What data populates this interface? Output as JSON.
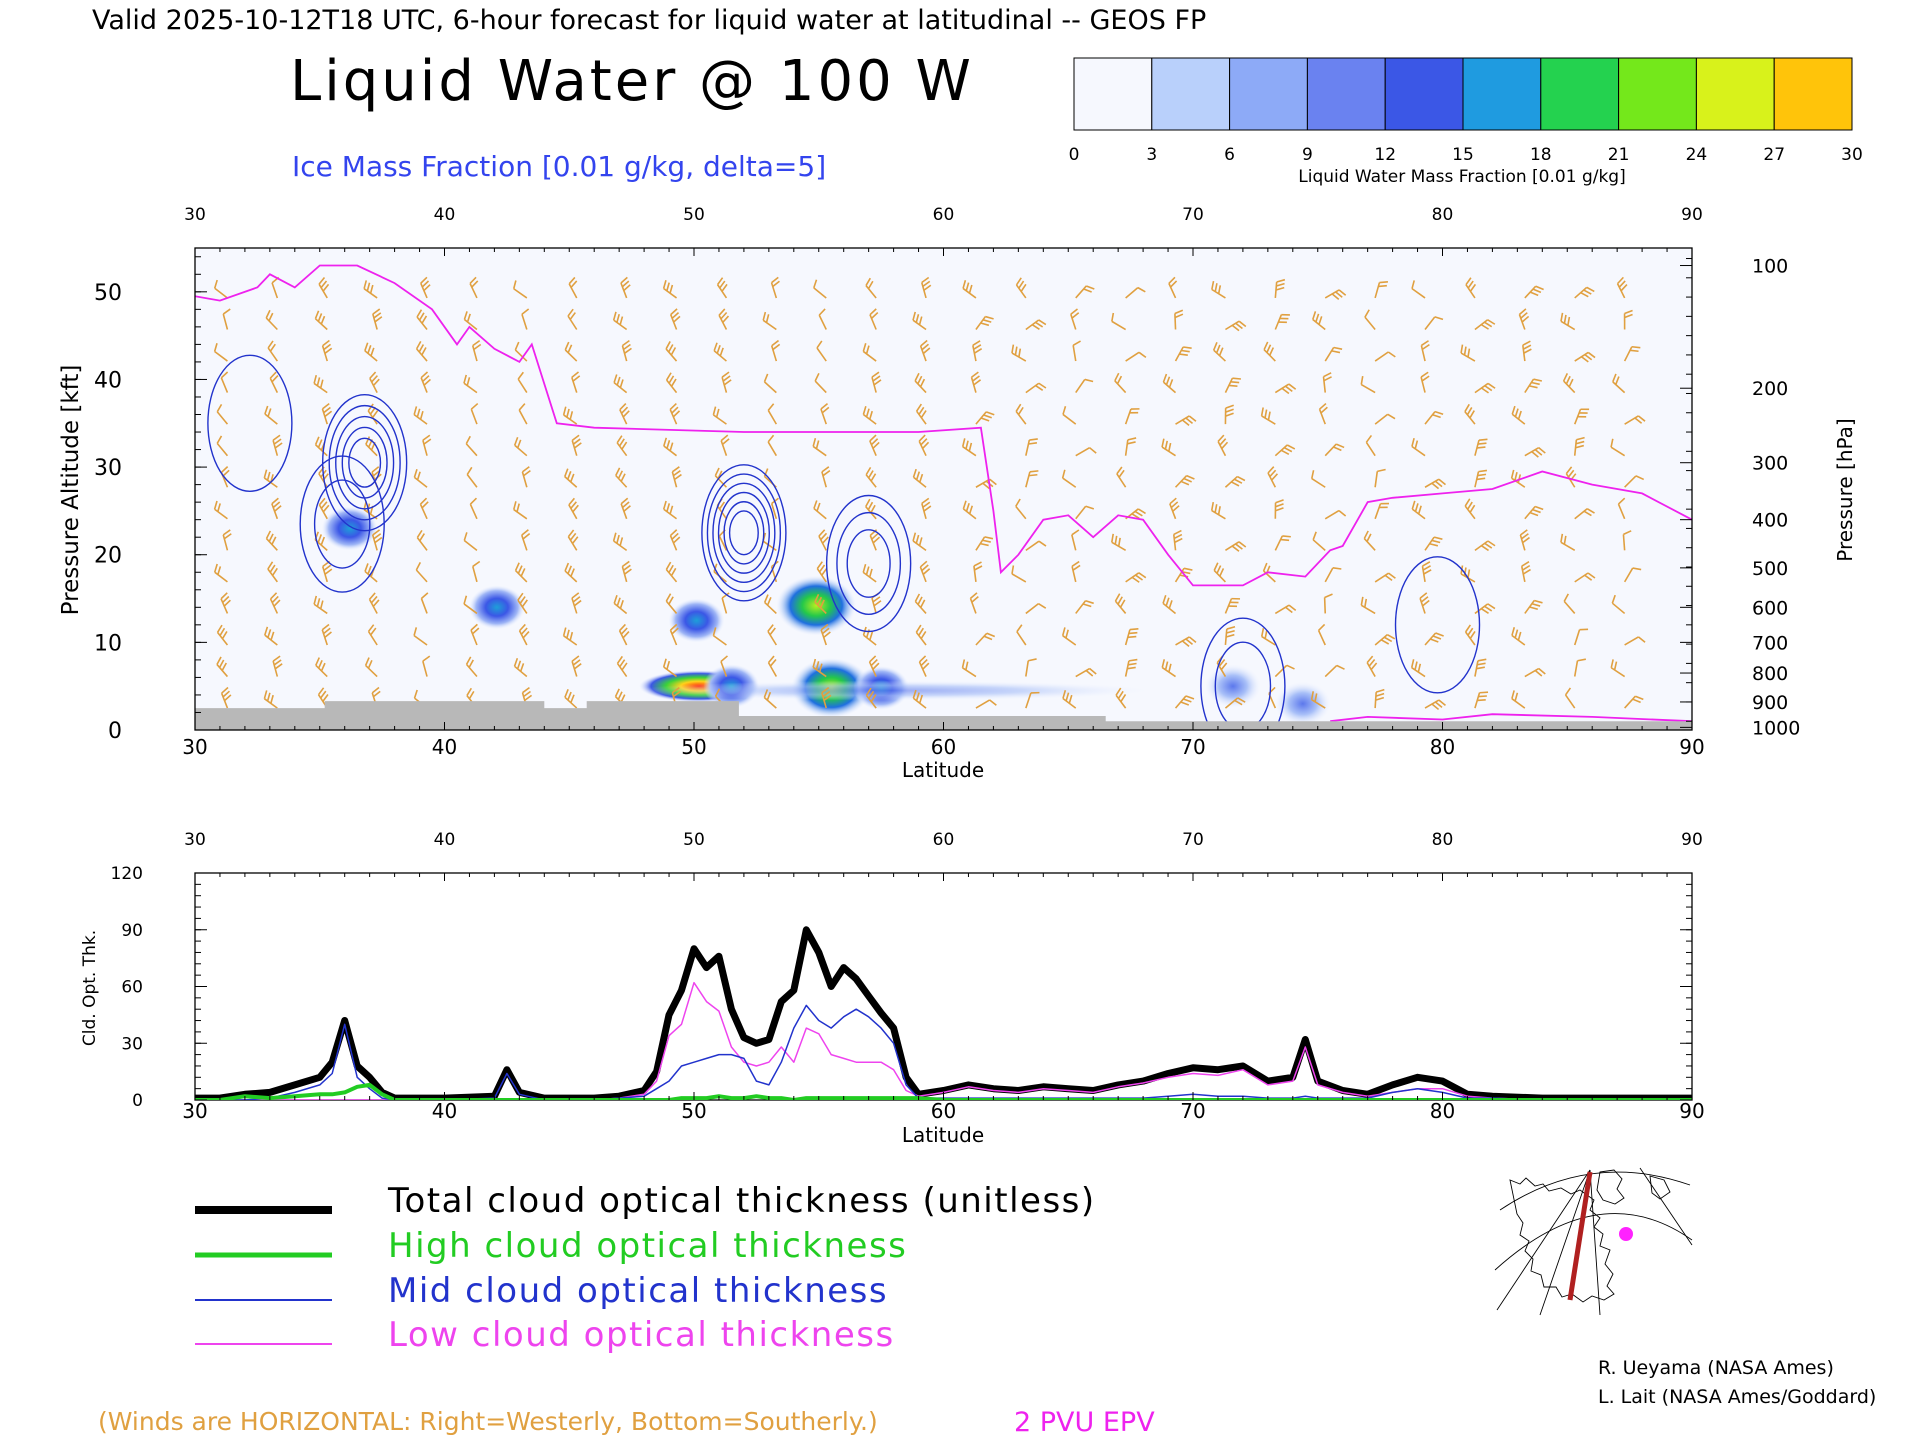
{
  "header": {
    "valid_line": "Valid 2025-10-12T18 UTC, 6-hour forecast for liquid water at latitudinal -- GEOS FP",
    "main_title": "Liquid Water @ 100 W",
    "ice_label": "Ice Mass Fraction [0.01 g/kg, delta=5]"
  },
  "colorbar": {
    "ticks": [
      "0",
      "3",
      "6",
      "9",
      "12",
      "15",
      "18",
      "21",
      "24",
      "27",
      "30"
    ],
    "label": "Liquid Water Mass Fraction [0.01 g/kg]",
    "colors": [
      "#f6f8fe",
      "#b9d0fb",
      "#8daaf7",
      "#6a82f0",
      "#3b57e6",
      "#1f9be0",
      "#24d24f",
      "#74e81b",
      "#d8f21b",
      "#ffc40a",
      "#ff9a07",
      "#ff3b0a"
    ]
  },
  "legend": {
    "items": [
      {
        "label": "Total cloud optical thickness (unitless)",
        "color": "#000000"
      },
      {
        "label": "High cloud optical thickness",
        "color": "#22cc22"
      },
      {
        "label": "Mid cloud optical thickness",
        "color": "#2233cc"
      },
      {
        "label": "Low cloud optical thickness",
        "color": "#ee44ee"
      }
    ]
  },
  "credits": {
    "line1": "R. Ueyama (NASA Ames)",
    "line2": "L. Lait (NASA Ames/Goddard)"
  },
  "footer": {
    "winds_note": "(Winds are HORIZONTAL: Right=Westerly, Bottom=Southerly.)",
    "pv_label": "2 PVU EPV",
    "winds_color": "#e0a040",
    "pv_color": "#ee22ee"
  },
  "chart_data": [
    {
      "type": "heatmap",
      "title": "Liquid Water @ 100 W",
      "xlabel": "Latitude",
      "ylabel": "Pressure Altitude [kft]",
      "y2label": "Pressure [hPa]",
      "xlim": [
        30,
        90
      ],
      "ylim": [
        0,
        55
      ],
      "xticks": [
        "30",
        "40",
        "50",
        "60",
        "70",
        "80",
        "90"
      ],
      "yticks": [
        "0",
        "10",
        "20",
        "30",
        "40",
        "50"
      ],
      "pressure_ticks": [
        {
          "label": "100",
          "kft": 53
        },
        {
          "label": "200",
          "kft": 39
        },
        {
          "label": "300",
          "kft": 30.5
        },
        {
          "label": "400",
          "kft": 24
        },
        {
          "label": "500",
          "kft": 18.5
        },
        {
          "label": "600",
          "kft": 14
        },
        {
          "label": "700",
          "kft": 10
        },
        {
          "label": "800",
          "kft": 6.5
        },
        {
          "label": "900",
          "kft": 3.2
        },
        {
          "label": "1000",
          "kft": 0.3
        }
      ],
      "liquid_water_blobs": [
        {
          "lat": 50.2,
          "kft": 5.0,
          "value": 30
        },
        {
          "lat": 51.5,
          "kft": 5.0,
          "value": 12
        },
        {
          "lat": 55.5,
          "kft": 4.8,
          "value": 14
        },
        {
          "lat": 57.5,
          "kft": 4.8,
          "value": 12
        },
        {
          "lat": 54.9,
          "kft": 14.2,
          "value": 21
        },
        {
          "lat": 50.1,
          "kft": 12.5,
          "value": 12
        },
        {
          "lat": 42.1,
          "kft": 14.0,
          "value": 10
        },
        {
          "lat": 36.2,
          "kft": 23.0,
          "value": 9
        },
        {
          "lat": 71.6,
          "kft": 5.0,
          "value": 8
        },
        {
          "lat": 74.4,
          "kft": 3.0,
          "value": 7
        }
      ],
      "ice_contours": [
        {
          "lat": 36.8,
          "kft": 30.5,
          "levels": 5
        },
        {
          "lat": 52.0,
          "kft": 22.5,
          "levels": 6
        },
        {
          "lat": 57.0,
          "kft": 19.0,
          "levels": 3
        },
        {
          "lat": 35.9,
          "kft": 23.5,
          "levels": 2
        },
        {
          "lat": 32.2,
          "kft": 35.0,
          "levels": 1
        },
        {
          "lat": 72.0,
          "kft": 5.0,
          "levels": 2
        },
        {
          "lat": 79.8,
          "kft": 12.0,
          "levels": 1
        }
      ],
      "epv_2pvu_kft": [
        {
          "lat": 30,
          "kft": 49.5
        },
        {
          "lat": 31,
          "kft": 49
        },
        {
          "lat": 32.5,
          "kft": 50.5
        },
        {
          "lat": 33,
          "kft": 52
        },
        {
          "lat": 34,
          "kft": 50.5
        },
        {
          "lat": 35,
          "kft": 53
        },
        {
          "lat": 36.5,
          "kft": 53
        },
        {
          "lat": 38,
          "kft": 51
        },
        {
          "lat": 39.5,
          "kft": 48
        },
        {
          "lat": 40.5,
          "kft": 44
        },
        {
          "lat": 41,
          "kft": 46
        },
        {
          "lat": 42,
          "kft": 43.5
        },
        {
          "lat": 43,
          "kft": 42
        },
        {
          "lat": 43.5,
          "kft": 44
        },
        {
          "lat": 44.5,
          "kft": 35
        },
        {
          "lat": 46,
          "kft": 34.5
        },
        {
          "lat": 52,
          "kft": 34
        },
        {
          "lat": 56,
          "kft": 34
        },
        {
          "lat": 59,
          "kft": 34
        },
        {
          "lat": 61.5,
          "kft": 34.5
        },
        {
          "lat": 62,
          "kft": 25
        },
        {
          "lat": 62.3,
          "kft": 18
        },
        {
          "lat": 63,
          "kft": 20
        },
        {
          "lat": 64,
          "kft": 24
        },
        {
          "lat": 65,
          "kft": 24.5
        },
        {
          "lat": 66,
          "kft": 22
        },
        {
          "lat": 67,
          "kft": 24.5
        },
        {
          "lat": 68,
          "kft": 24
        },
        {
          "lat": 69,
          "kft": 20
        },
        {
          "lat": 70,
          "kft": 16.5
        },
        {
          "lat": 72,
          "kft": 16.5
        },
        {
          "lat": 73,
          "kft": 18
        },
        {
          "lat": 74.5,
          "kft": 17.5
        },
        {
          "lat": 75.5,
          "kft": 20.5
        },
        {
          "lat": 76,
          "kft": 21
        },
        {
          "lat": 77,
          "kft": 26
        },
        {
          "lat": 78,
          "kft": 26.5
        },
        {
          "lat": 80,
          "kft": 27
        },
        {
          "lat": 82,
          "kft": 27.5
        },
        {
          "lat": 84,
          "kft": 29.5
        },
        {
          "lat": 86,
          "kft": 28
        },
        {
          "lat": 88,
          "kft": 27
        },
        {
          "lat": 90,
          "kft": 24
        }
      ],
      "epv_low_kft": [
        {
          "lat": 75.5,
          "kft": 1
        },
        {
          "lat": 77,
          "kft": 1.5
        },
        {
          "lat": 80,
          "kft": 1.2
        },
        {
          "lat": 82,
          "kft": 1.8
        },
        {
          "lat": 86,
          "kft": 1.5
        },
        {
          "lat": 90,
          "kft": 1
        }
      ],
      "terrain_kft": [
        {
          "lat": 30,
          "kft": 2.5
        },
        {
          "lat": 35.2,
          "kft": 2.5
        },
        {
          "lat": 35.2,
          "kft": 3.3
        },
        {
          "lat": 44,
          "kft": 3.3
        },
        {
          "lat": 44,
          "kft": 2.5
        },
        {
          "lat": 45.7,
          "kft": 2.5
        },
        {
          "lat": 45.7,
          "kft": 3.3
        },
        {
          "lat": 51.8,
          "kft": 3.3
        },
        {
          "lat": 51.8,
          "kft": 1.6
        },
        {
          "lat": 66.5,
          "kft": 1.6
        },
        {
          "lat": 66.5,
          "kft": 1.0
        },
        {
          "lat": 90,
          "kft": 1.0
        }
      ]
    },
    {
      "type": "line",
      "xlabel": "Latitude",
      "ylabel": "Cld. Opt. Thk.",
      "xlim": [
        30,
        90
      ],
      "ylim": [
        0,
        120
      ],
      "xticks": [
        "30",
        "40",
        "50",
        "60",
        "70",
        "80",
        "90"
      ],
      "yticks": [
        "0",
        "30",
        "60",
        "90",
        "120"
      ],
      "x": [
        30,
        31,
        32,
        33,
        34,
        35,
        35.5,
        36,
        36.5,
        37,
        37.5,
        38,
        40,
        42,
        42.5,
        43,
        44,
        46,
        47,
        48,
        48.5,
        49,
        49.5,
        50,
        50.5,
        51,
        51.5,
        52,
        52.5,
        53,
        53.5,
        54,
        54.5,
        55,
        55.5,
        56,
        56.5,
        57,
        57.5,
        58,
        58.5,
        59,
        60,
        61,
        62,
        63,
        64,
        65,
        66,
        67,
        68,
        69,
        70,
        71,
        72,
        73,
        74,
        74.5,
        75,
        76,
        77,
        78,
        79,
        80,
        81,
        82,
        84,
        86,
        88,
        90
      ],
      "series": [
        {
          "name": "Total cloud optical thickness (unitless)",
          "values": [
            1,
            1,
            3,
            4,
            8,
            12,
            20,
            42,
            18,
            12,
            4,
            1,
            1,
            2,
            16,
            4,
            1,
            1,
            2,
            5,
            15,
            45,
            58,
            80,
            70,
            76,
            48,
            33,
            30,
            32,
            52,
            58,
            90,
            78,
            60,
            70,
            64,
            55,
            46,
            38,
            12,
            3,
            5,
            8,
            6,
            5,
            7,
            6,
            5,
            8,
            10,
            14,
            17,
            16,
            18,
            10,
            12,
            32,
            10,
            5,
            3,
            8,
            12,
            10,
            3,
            2,
            1,
            1,
            1,
            1
          ],
          "color": "#000000"
        },
        {
          "name": "High cloud optical thickness",
          "values": [
            0,
            0,
            2,
            1,
            2,
            3,
            3,
            4,
            7,
            8,
            3,
            0,
            0,
            0,
            0,
            0,
            0,
            0,
            0,
            0,
            0,
            0,
            1,
            1,
            1,
            2,
            1,
            1,
            2,
            1,
            1,
            0,
            1,
            1,
            1,
            1,
            1,
            1,
            1,
            1,
            1,
            1,
            0,
            0,
            0,
            0,
            0,
            0,
            0,
            0,
            0,
            0,
            0,
            0,
            0,
            0,
            0,
            0,
            0,
            0,
            0,
            0,
            0,
            0,
            0,
            0,
            0,
            0,
            0,
            0
          ],
          "color": "#22cc22"
        },
        {
          "name": "Mid cloud optical thickness",
          "values": [
            0,
            0,
            0,
            1,
            4,
            8,
            14,
            40,
            12,
            6,
            1,
            0,
            0,
            1,
            14,
            3,
            0,
            0,
            1,
            2,
            6,
            10,
            18,
            20,
            22,
            24,
            24,
            22,
            10,
            8,
            20,
            38,
            50,
            42,
            38,
            44,
            48,
            44,
            38,
            30,
            8,
            1,
            1,
            1,
            1,
            1,
            1,
            1,
            1,
            1,
            1,
            2,
            3,
            2,
            2,
            1,
            1,
            2,
            1,
            1,
            1,
            4,
            6,
            4,
            1,
            1,
            0,
            0,
            0,
            0
          ],
          "color": "#2233cc"
        },
        {
          "name": "Low cloud optical thickness",
          "values": [
            0,
            0,
            0,
            0,
            0,
            0,
            0,
            0,
            0,
            0,
            0,
            0,
            0,
            0,
            0,
            0,
            0,
            0,
            1,
            3,
            10,
            34,
            40,
            62,
            52,
            47,
            28,
            20,
            18,
            20,
            28,
            20,
            38,
            35,
            24,
            22,
            20,
            20,
            20,
            16,
            5,
            2,
            4,
            7,
            5,
            4,
            6,
            5,
            4,
            7,
            9,
            12,
            14,
            13,
            16,
            8,
            10,
            28,
            8,
            4,
            2,
            4,
            6,
            6,
            2,
            1,
            0,
            0,
            0,
            0
          ],
          "color": "#ee44ee"
        }
      ]
    }
  ]
}
